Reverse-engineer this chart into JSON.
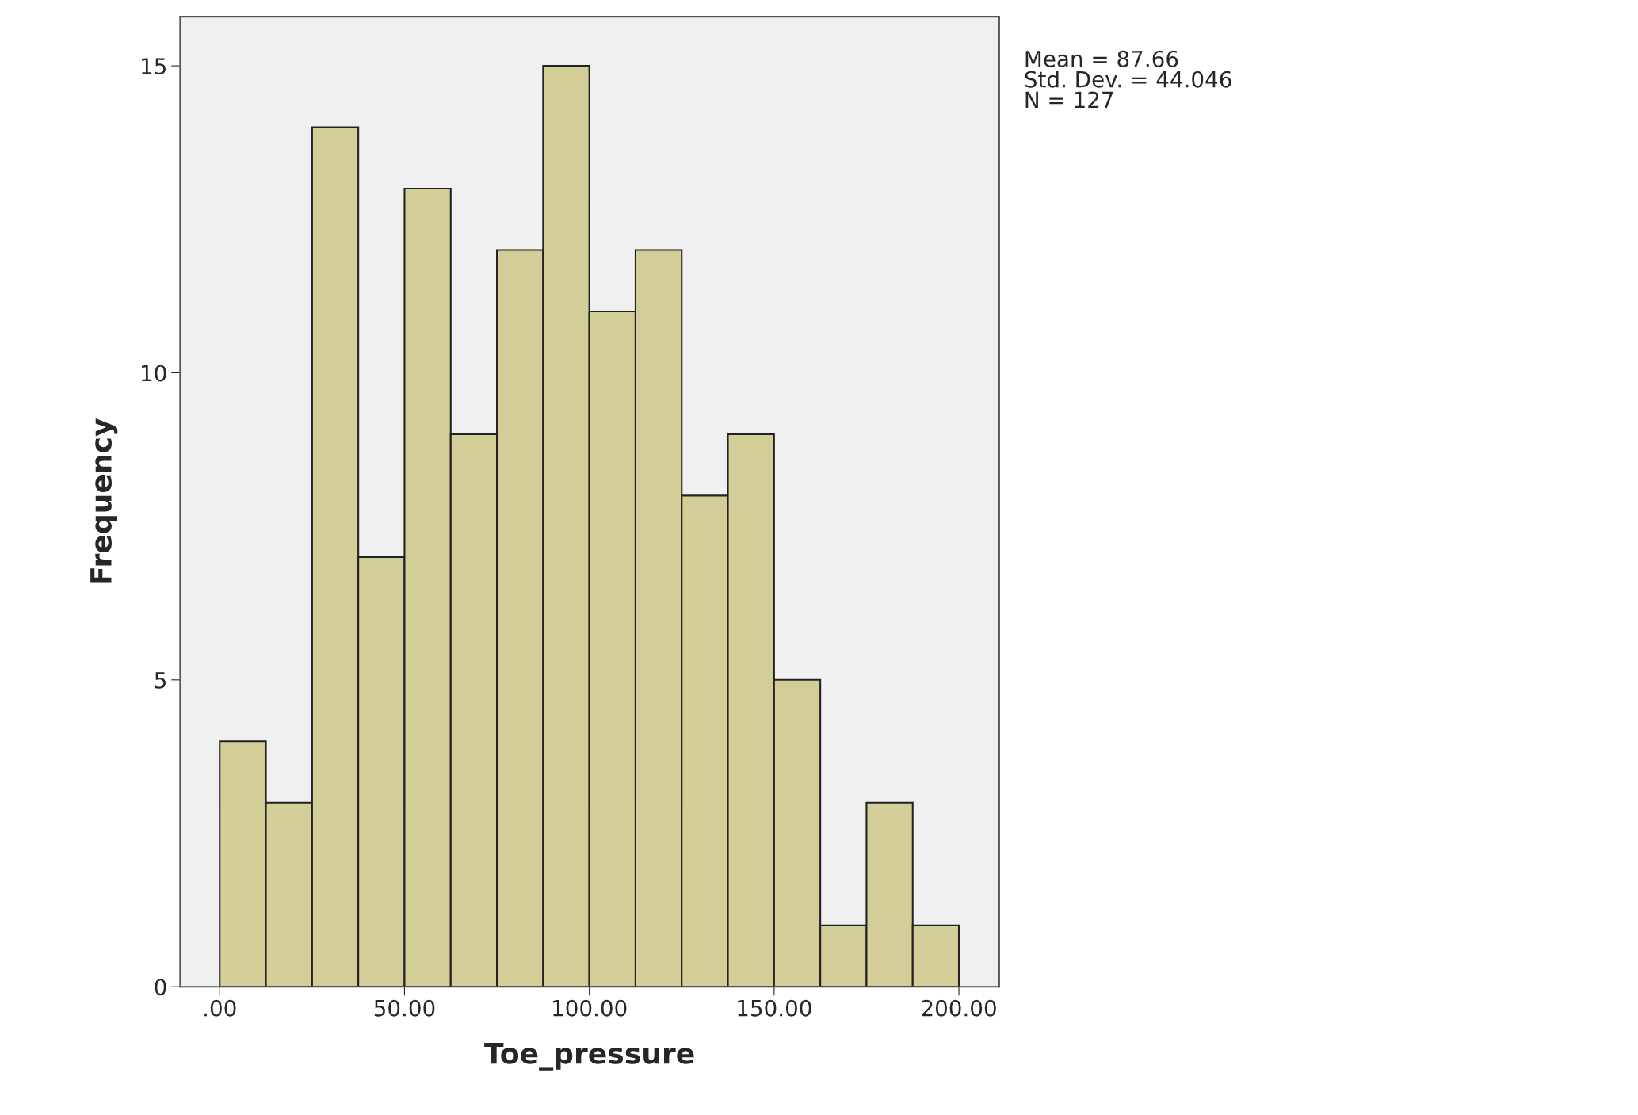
{
  "chart_data": {
    "type": "histogram",
    "xlabel": "Toe_pressure",
    "ylabel": "Frequency",
    "bins": [
      0,
      12.5,
      25,
      37.5,
      50,
      62.5,
      75,
      87.5,
      100,
      112.5,
      125,
      137.5,
      150,
      162.5,
      175,
      187.5,
      200
    ],
    "values": [
      4,
      3,
      14,
      7,
      13,
      9,
      12,
      15,
      11,
      12,
      8,
      9,
      5,
      1,
      3,
      1
    ],
    "color": "#d3ce97",
    "xlim": [
      -10.7,
      210.9
    ],
    "xticks": [
      {
        "value": 0,
        "label": ".00"
      },
      {
        "value": 50,
        "label": "50.00"
      },
      {
        "value": 100,
        "label": "100.00"
      },
      {
        "value": 150,
        "label": "150.00"
      },
      {
        "value": 200,
        "label": "200.00"
      }
    ],
    "ylim": [
      0,
      15.8
    ],
    "yticks": [
      0,
      5,
      10,
      15
    ],
    "annotations": [
      "Mean = 87.66\nStd. Dev. = 44.046\nN = 127"
    ],
    "grid": false
  }
}
